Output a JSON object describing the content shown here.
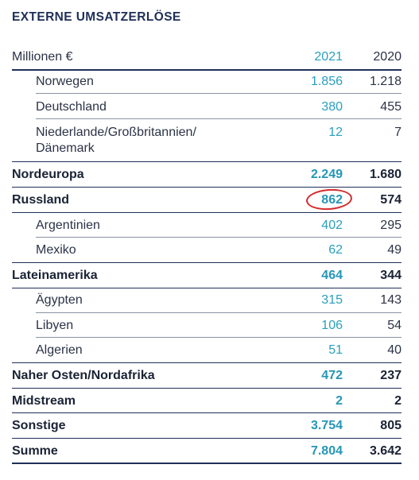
{
  "title": "EXTERNE UMSATZERLÖSE",
  "header": {
    "label": "Millionen €",
    "year_current": "2021",
    "year_previous": "2020"
  },
  "rows": [
    {
      "label": "Norwegen",
      "v2021": "1.856",
      "v2020": "1.218"
    },
    {
      "label": "Deutschland",
      "v2021": "380",
      "v2020": "455"
    },
    {
      "label_line1": "Niederlande/Großbritannien/",
      "label_line2": "Dänemark",
      "v2021": "12",
      "v2020": "7"
    },
    {
      "label": "Nordeuropa",
      "v2021": "2.249",
      "v2020": "1.680"
    },
    {
      "label": "Russland",
      "v2021": "862",
      "v2020": "574"
    },
    {
      "label": "Argentinien",
      "v2021": "402",
      "v2020": "295"
    },
    {
      "label": "Mexiko",
      "v2021": "62",
      "v2020": "49"
    },
    {
      "label": "Lateinamerika",
      "v2021": "464",
      "v2020": "344"
    },
    {
      "label": "Ägypten",
      "v2021": "315",
      "v2020": "143"
    },
    {
      "label": "Libyen",
      "v2021": "106",
      "v2020": "54"
    },
    {
      "label": "Algerien",
      "v2021": "51",
      "v2020": "40"
    },
    {
      "label": "Naher Osten/Nordafrika",
      "v2021": "472",
      "v2020": "237"
    },
    {
      "label": "Midstream",
      "v2021": "2",
      "v2020": "2"
    },
    {
      "label": "Sonstige",
      "v2021": "3.754",
      "v2020": "805"
    },
    {
      "label": "Summe",
      "v2021": "7.804",
      "v2020": "3.642"
    }
  ],
  "annotation": {
    "highlighted_value": "862",
    "color": "#d62b2b"
  }
}
